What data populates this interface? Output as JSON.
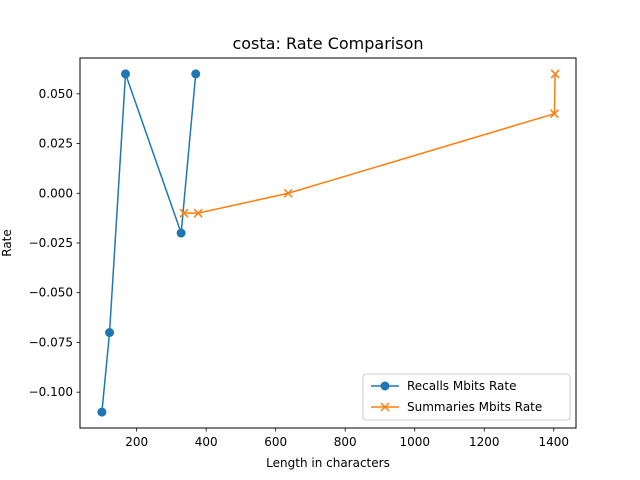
{
  "chart_data": {
    "type": "line",
    "title": "costa: Rate Comparison",
    "xlabel": "Length in characters",
    "ylabel": "Rate",
    "xlim": [
      37,
      1464
    ],
    "ylim": [
      -0.118,
      0.068
    ],
    "xticks": [
      200,
      400,
      600,
      800,
      1000,
      1200,
      1400
    ],
    "xtick_labels": [
      "200",
      "400",
      "600",
      "800",
      "1000",
      "1200",
      "1400"
    ],
    "yticks": [
      -0.1,
      -0.075,
      -0.05,
      -0.025,
      0.0,
      0.025,
      0.05
    ],
    "ytick_labels": [
      "−0.100",
      "−0.075",
      "−0.050",
      "−0.025",
      "0.000",
      "0.025",
      "0.050"
    ],
    "grid": false,
    "legend_position": "bottom-right",
    "series": [
      {
        "name": "Recalls Mbits Rate",
        "color": "#1f77b4",
        "marker": "circle",
        "x": [
          100,
          122,
          168,
          328,
          370
        ],
        "y": [
          -0.11,
          -0.07,
          0.06,
          -0.02,
          0.06
        ]
      },
      {
        "name": "Summaries Mbits Rate",
        "color": "#ff7f0e",
        "marker": "x",
        "x": [
          336,
          377,
          636,
          1402,
          1404
        ],
        "y": [
          -0.01,
          -0.01,
          0.0,
          0.04,
          0.06
        ]
      }
    ]
  }
}
